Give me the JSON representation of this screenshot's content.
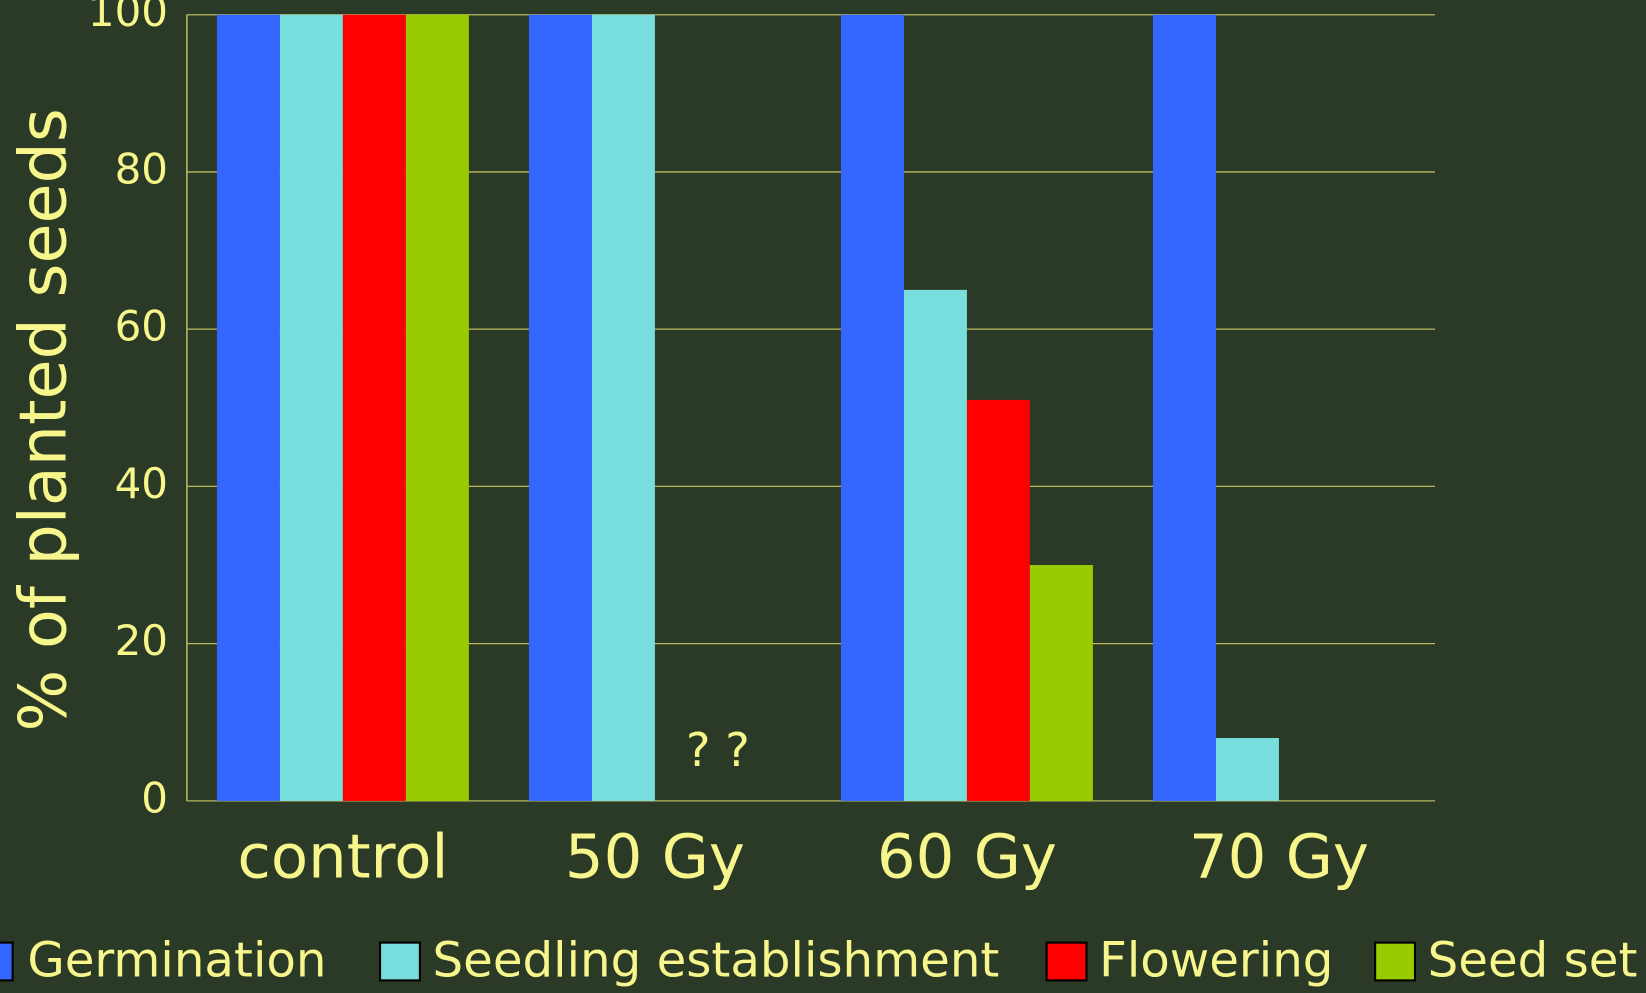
{
  "chart_data": {
    "type": "bar",
    "y_label": "% of planted seeds",
    "categories": [
      "control",
      "50 Gy",
      "60 Gy",
      "70 Gy"
    ],
    "series": [
      {
        "name": "Germination",
        "color": "#3366ff",
        "values": [
          100,
          100,
          100,
          100
        ]
      },
      {
        "name": "Seedling establishment",
        "color": "#77dddd",
        "values": [
          100,
          100,
          65,
          8
        ]
      },
      {
        "name": "Flowering",
        "color": "#ff0000",
        "values": [
          100,
          null,
          51,
          0
        ]
      },
      {
        "name": "Seed set",
        "color": "#99cc00",
        "values": [
          100,
          null,
          30,
          0
        ]
      }
    ],
    "annotations": [
      {
        "text": "? ?",
        "category": 1
      }
    ],
    "ylim": [
      0,
      100
    ],
    "yticks": [
      0,
      20,
      40,
      60,
      80,
      100
    ],
    "grid": true,
    "legend": "bottom"
  }
}
